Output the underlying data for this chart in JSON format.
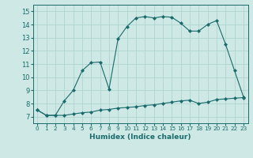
{
  "xlabel": "Humidex (Indice chaleur)",
  "xlim": [
    -0.5,
    23.5
  ],
  "ylim": [
    6.5,
    15.5
  ],
  "yticks": [
    7,
    8,
    9,
    10,
    11,
    12,
    13,
    14,
    15
  ],
  "xticks": [
    0,
    1,
    2,
    3,
    4,
    5,
    6,
    7,
    8,
    9,
    10,
    11,
    12,
    13,
    14,
    15,
    16,
    17,
    18,
    19,
    20,
    21,
    22,
    23
  ],
  "bg_color": "#cde8e5",
  "line_color": "#1a6b6b",
  "grid_color": "#afd4cf",
  "line1_x": [
    0,
    1,
    2,
    3,
    4,
    5,
    6,
    7,
    8,
    9,
    10,
    11,
    12,
    13,
    14,
    15,
    16,
    17,
    18,
    19,
    20,
    21,
    22,
    23
  ],
  "line1_y": [
    7.5,
    7.1,
    7.1,
    7.1,
    7.2,
    7.3,
    7.35,
    7.5,
    7.55,
    7.65,
    7.7,
    7.75,
    7.85,
    7.9,
    8.0,
    8.1,
    8.2,
    8.25,
    8.0,
    8.1,
    8.3,
    8.35,
    8.4,
    8.45
  ],
  "line2_x": [
    0,
    1,
    2,
    3,
    4,
    5,
    6,
    7,
    8,
    9,
    10,
    11,
    12,
    13,
    14,
    15,
    16,
    17,
    18,
    19,
    20,
    21,
    22,
    23
  ],
  "line2_y": [
    7.5,
    7.1,
    7.1,
    8.2,
    9.0,
    10.5,
    11.1,
    11.15,
    9.1,
    12.9,
    13.85,
    14.5,
    14.6,
    14.5,
    14.6,
    14.55,
    14.1,
    13.5,
    13.5,
    14.0,
    14.3,
    12.5,
    10.5,
    8.5
  ]
}
